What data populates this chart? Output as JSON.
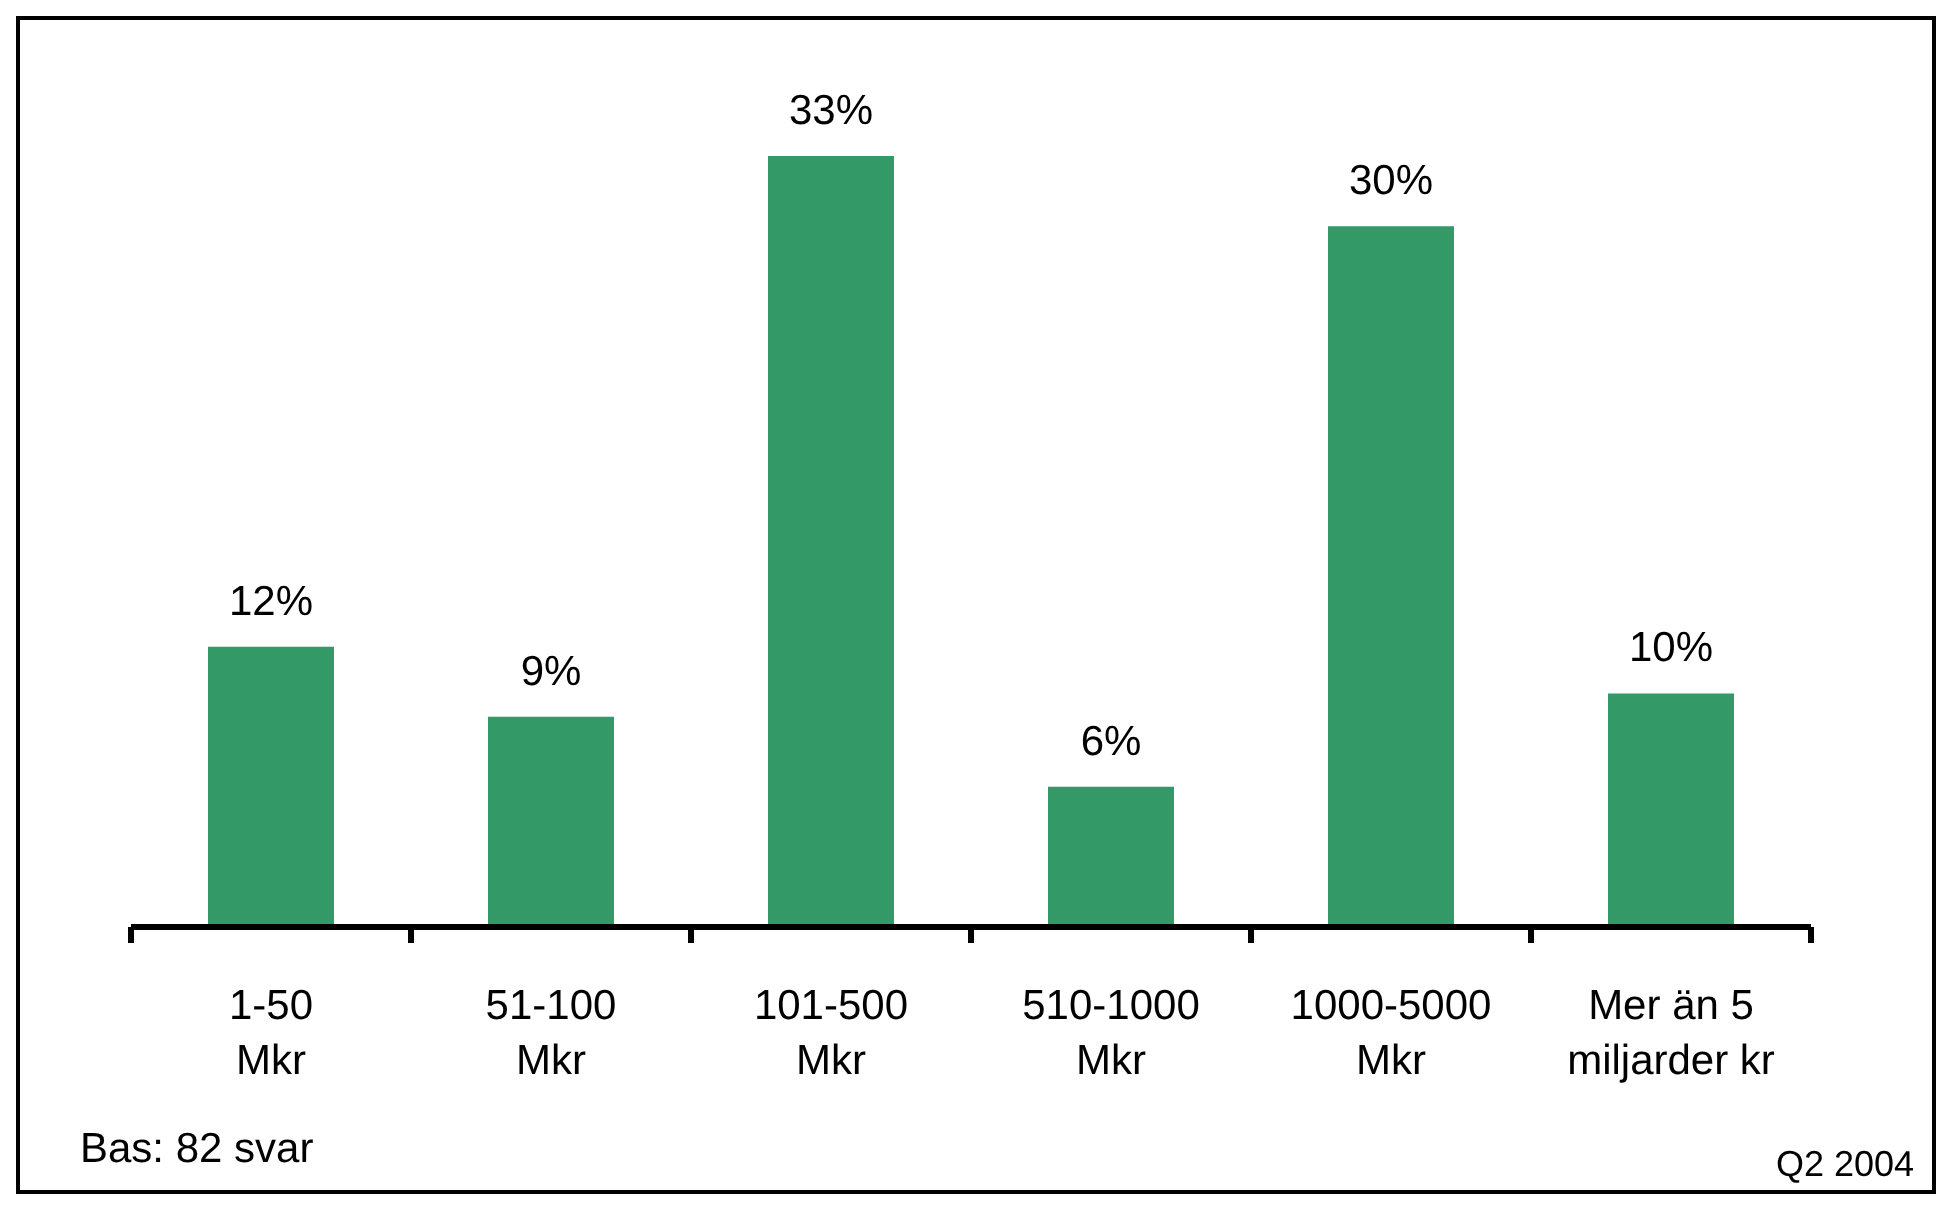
{
  "chart_data": {
    "type": "bar",
    "categories": [
      "1-50\nMkr",
      "51-100\nMkr",
      "101-500\nMkr",
      "510-1000\nMkr",
      "1000-5000\nMkr",
      "Mer än 5\nmiljarder kr"
    ],
    "values": [
      12,
      9,
      33,
      6,
      30,
      10
    ],
    "value_labels": [
      "12%",
      "9%",
      "33%",
      "6%",
      "30%",
      "10%"
    ],
    "color": "#339966",
    "annotations": [
      "Bas: 82 svar",
      "Q2 2004"
    ]
  }
}
